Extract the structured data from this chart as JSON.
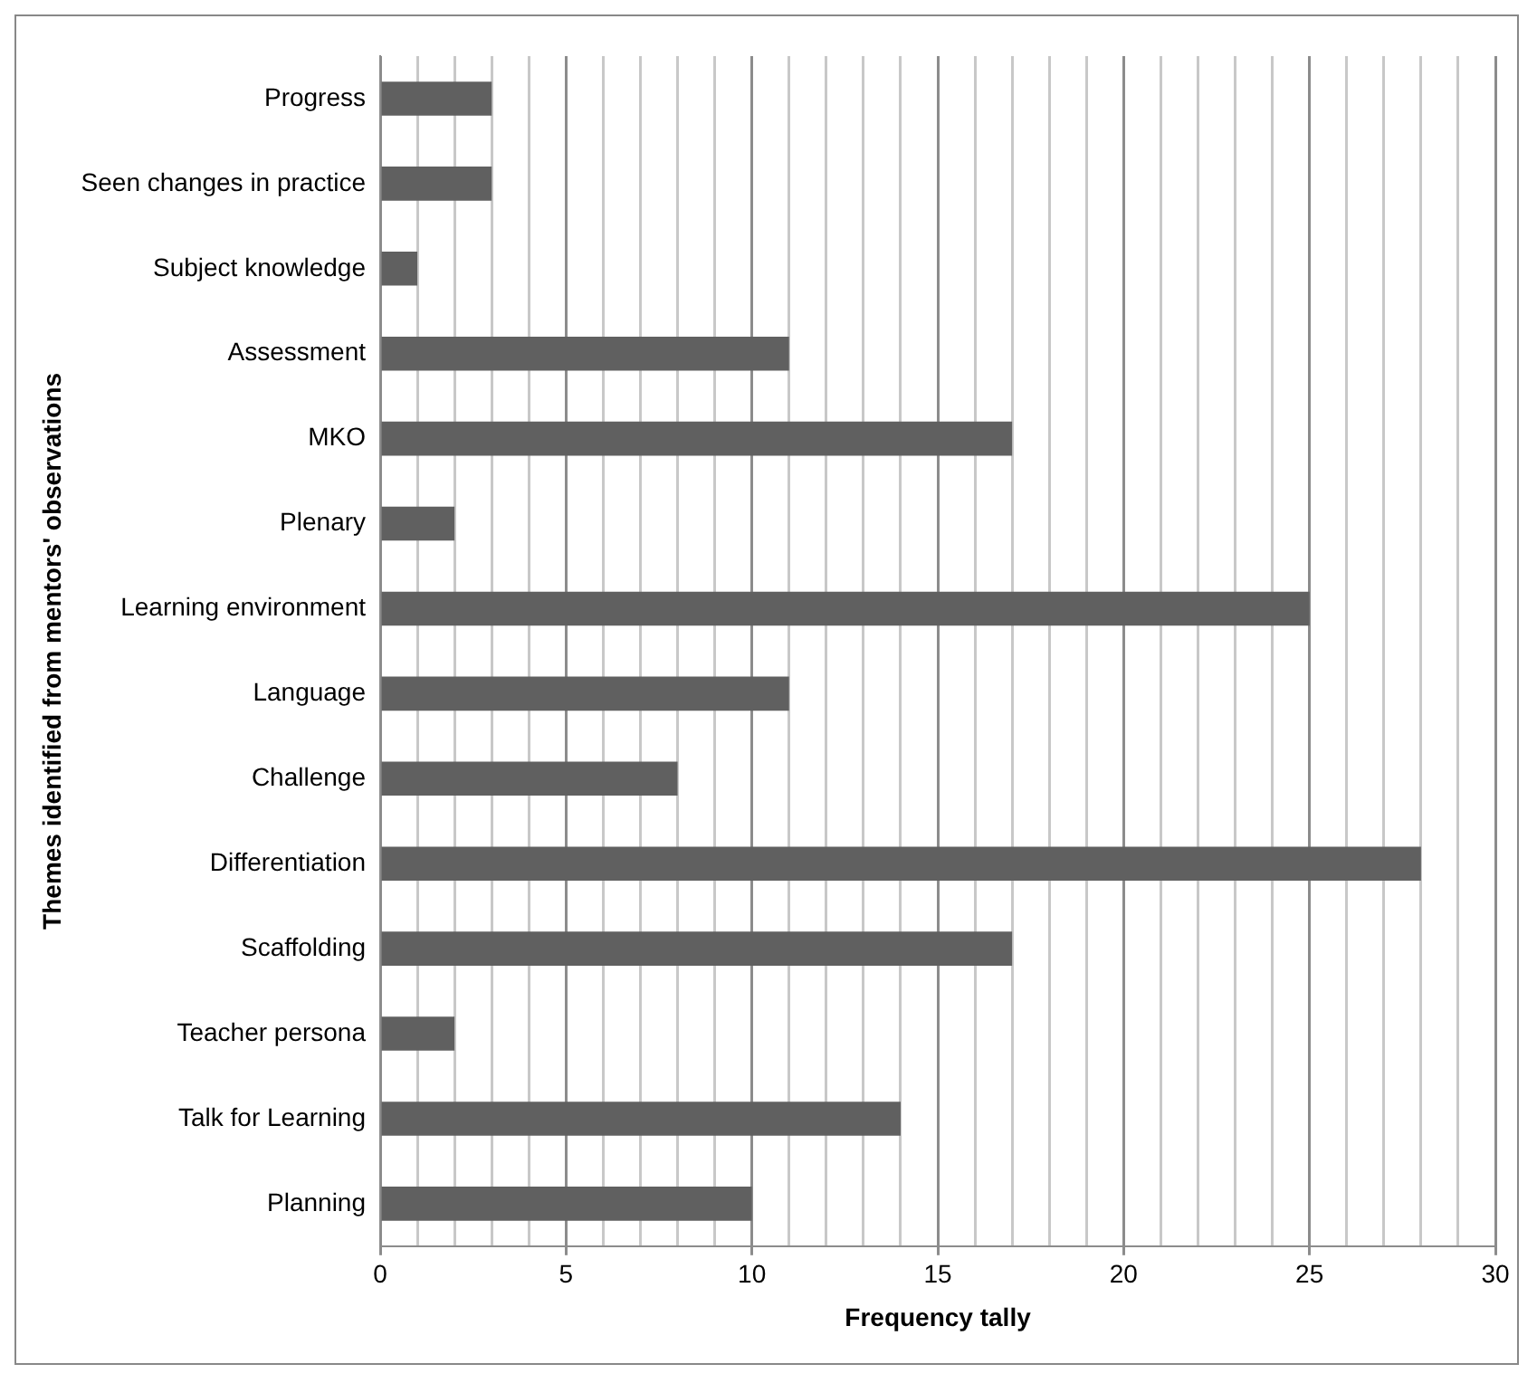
{
  "chart_data": {
    "type": "bar",
    "orientation": "horizontal",
    "xlabel": "Frequency tally",
    "ylabel": "Themes identified from mentors' observations",
    "categories": [
      "Progress",
      "Seen changes in practice",
      "Subject knowledge",
      "Assessment",
      "MKO",
      "Plenary",
      "Learning environment",
      "Language",
      "Challenge",
      "Differentiation",
      "Scaffolding",
      "Teacher persona",
      "Talk for Learning",
      "Planning"
    ],
    "values": [
      3,
      3,
      1,
      11,
      17,
      2,
      25,
      11,
      8,
      28,
      17,
      2,
      14,
      10
    ],
    "color": "#606060",
    "xlim": [
      0,
      30
    ],
    "xticks": [
      0,
      {
        "value": 1,
        "label": null
      },
      {
        "value": 2,
        "label": null
      },
      {
        "value": 3,
        "label": null
      },
      {
        "value": 4,
        "label": null
      },
      5,
      {
        "value": 6,
        "label": null
      },
      {
        "value": 7,
        "label": null
      },
      {
        "value": 8,
        "label": null
      },
      {
        "value": 9,
        "label": null
      },
      10,
      {
        "value": 11,
        "label": null
      },
      {
        "value": 12,
        "label": null
      },
      {
        "value": 13,
        "label": null
      },
      {
        "value": 14,
        "label": null
      },
      15,
      {
        "value": 16,
        "label": null
      },
      {
        "value": 17,
        "label": null
      },
      {
        "value": 18,
        "label": null
      },
      {
        "value": 19,
        "label": null
      },
      20,
      {
        "value": 21,
        "label": null
      },
      {
        "value": 22,
        "label": null
      },
      {
        "value": 23,
        "label": null
      },
      {
        "value": 24,
        "label": null
      },
      25,
      {
        "value": 26,
        "label": null
      },
      {
        "value": 27,
        "label": null
      },
      {
        "value": 28,
        "label": null
      },
      {
        "value": 29,
        "label": null
      },
      30
    ],
    "grid": "x",
    "legend": false
  }
}
